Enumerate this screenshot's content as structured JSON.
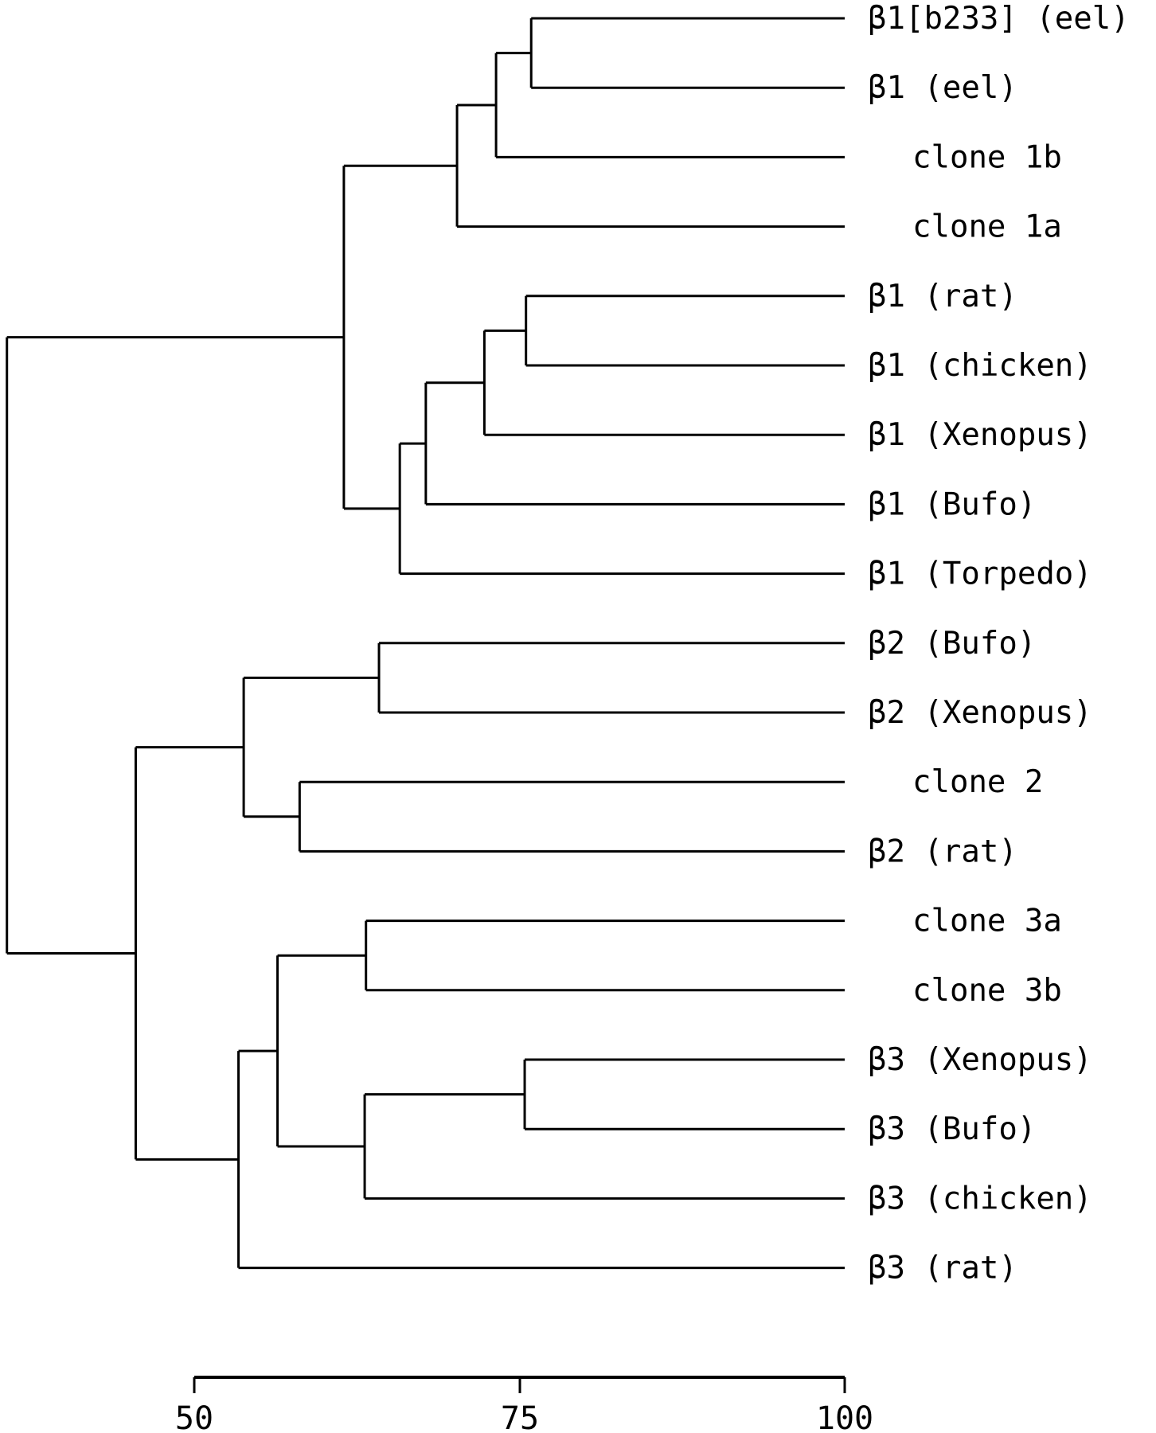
{
  "chart_data": {
    "type": "dendrogram",
    "title": "",
    "xlabel": "",
    "xlim": [
      50,
      100
    ],
    "xticks": [
      "50",
      "75",
      "100"
    ],
    "leaves": [
      "β1[b233] (eel)",
      "β1 (eel)",
      "clone 1b",
      "clone 1a",
      "β1 (rat)",
      "β1 (chicken)",
      "β1 (Xenopus)",
      "β1 (Bufo)",
      "β1 (Torpedo)",
      "β2 (Bufo)",
      "β2 (Xenopus)",
      "clone 2",
      "β2 (rat)",
      "clone 3a",
      "clone 3b",
      "β3 (Xenopus)",
      "β3 (Bufo)",
      "β3 (chicken)",
      "β3 (rat)"
    ],
    "tree": {
      "h": 35.6,
      "c": [
        {
          "h": 61.5,
          "c": [
            {
              "h": 70.2,
              "c": [
                {
                  "h": 73.2,
                  "c": [
                    {
                      "h": 75.9,
                      "c": [
                        {
                          "leaf": 0
                        },
                        {
                          "leaf": 1
                        }
                      ]
                    },
                    {
                      "leaf": 2
                    }
                  ]
                },
                {
                  "leaf": 3
                }
              ]
            },
            {
              "h": 65.8,
              "c": [
                {
                  "h": 67.8,
                  "c": [
                    {
                      "h": 72.3,
                      "c": [
                        {
                          "h": 75.5,
                          "c": [
                            {
                              "leaf": 4
                            },
                            {
                              "leaf": 5
                            }
                          ]
                        },
                        {
                          "leaf": 6
                        }
                      ]
                    },
                    {
                      "leaf": 7
                    }
                  ]
                },
                {
                  "leaf": 8
                }
              ]
            }
          ]
        },
        {
          "h": 45.5,
          "c": [
            {
              "h": 53.8,
              "c": [
                {
                  "h": 64.2,
                  "c": [
                    {
                      "leaf": 9
                    },
                    {
                      "leaf": 10
                    }
                  ]
                },
                {
                  "h": 58.1,
                  "c": [
                    {
                      "leaf": 11
                    },
                    {
                      "leaf": 12
                    }
                  ]
                }
              ]
            },
            {
              "h": 53.4,
              "c": [
                {
                  "h": 56.4,
                  "c": [
                    {
                      "h": 63.2,
                      "c": [
                        {
                          "leaf": 13
                        },
                        {
                          "leaf": 14
                        }
                      ]
                    },
                    {
                      "h": 63.1,
                      "c": [
                        {
                          "h": 75.4,
                          "c": [
                            {
                              "leaf": 15
                            },
                            {
                              "leaf": 16
                            }
                          ]
                        },
                        {
                          "leaf": 17
                        }
                      ]
                    }
                  ]
                },
                {
                  "leaf": 18
                }
              ]
            }
          ]
        }
      ]
    }
  }
}
